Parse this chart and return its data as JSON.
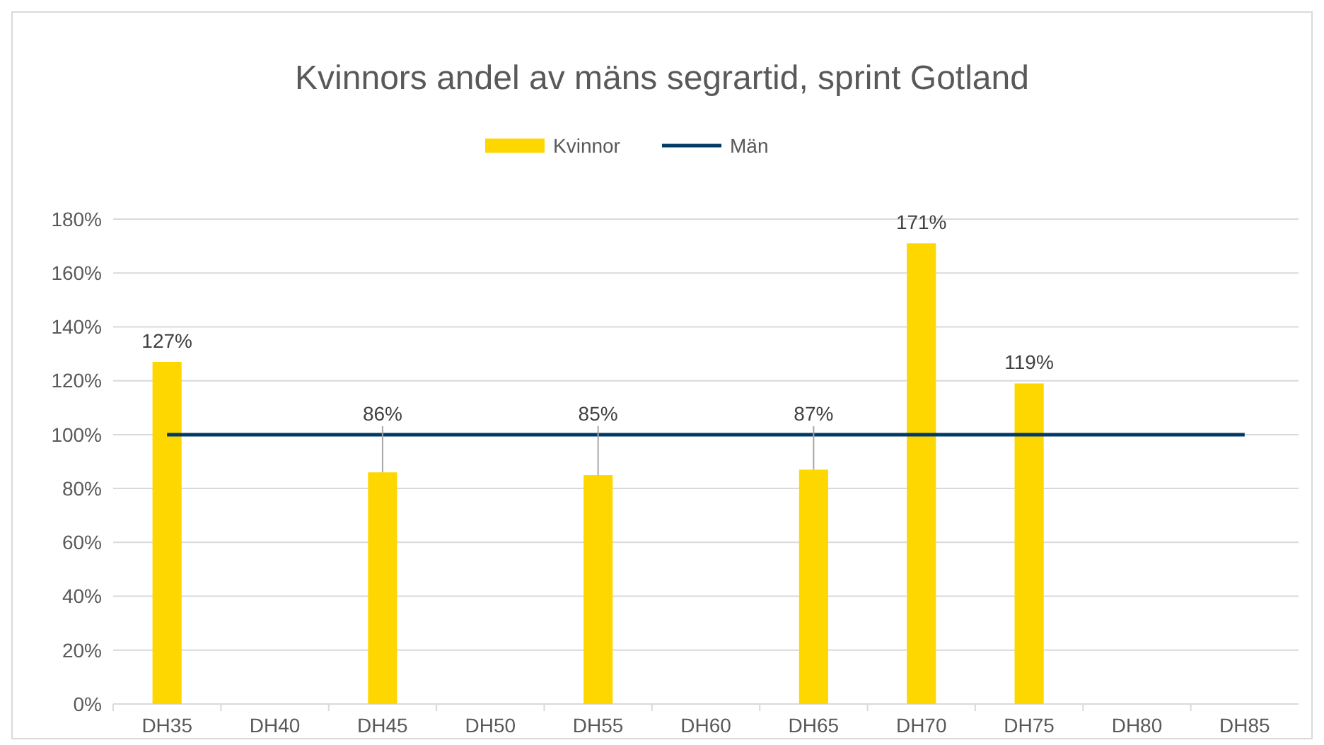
{
  "chart_data": {
    "type": "bar",
    "title": "Kvinnors andel av mäns segrartid, sprint Gotland",
    "categories": [
      "DH35",
      "DH40",
      "DH45",
      "DH50",
      "DH55",
      "DH60",
      "DH65",
      "DH70",
      "DH75",
      "DH80",
      "DH85"
    ],
    "series": [
      {
        "name": "Kvinnor",
        "color": "#ffd700",
        "values": [
          127,
          null,
          86,
          null,
          85,
          null,
          87,
          171,
          119,
          null,
          null
        ],
        "value_labels": [
          "127%",
          null,
          "86%",
          null,
          "85%",
          null,
          "87%",
          "171%",
          "119%",
          null,
          null
        ]
      },
      {
        "name": "Män",
        "type": "line",
        "color": "#003a66",
        "values": [
          100,
          100,
          100,
          100,
          100,
          100,
          100,
          100,
          100,
          100,
          100
        ]
      }
    ],
    "ylim": [
      0,
      180
    ],
    "yticks": [
      {
        "value": 0,
        "label": "0%"
      },
      {
        "value": 20,
        "label": "20%"
      },
      {
        "value": 40,
        "label": "40%"
      },
      {
        "value": 60,
        "label": "60%"
      },
      {
        "value": 80,
        "label": "80%"
      },
      {
        "value": 100,
        "label": "100%"
      },
      {
        "value": 120,
        "label": "120%"
      },
      {
        "value": 140,
        "label": "140%"
      },
      {
        "value": 160,
        "label": "160%"
      },
      {
        "value": 180,
        "label": "180%"
      }
    ],
    "grid": "y",
    "legend": "top"
  }
}
